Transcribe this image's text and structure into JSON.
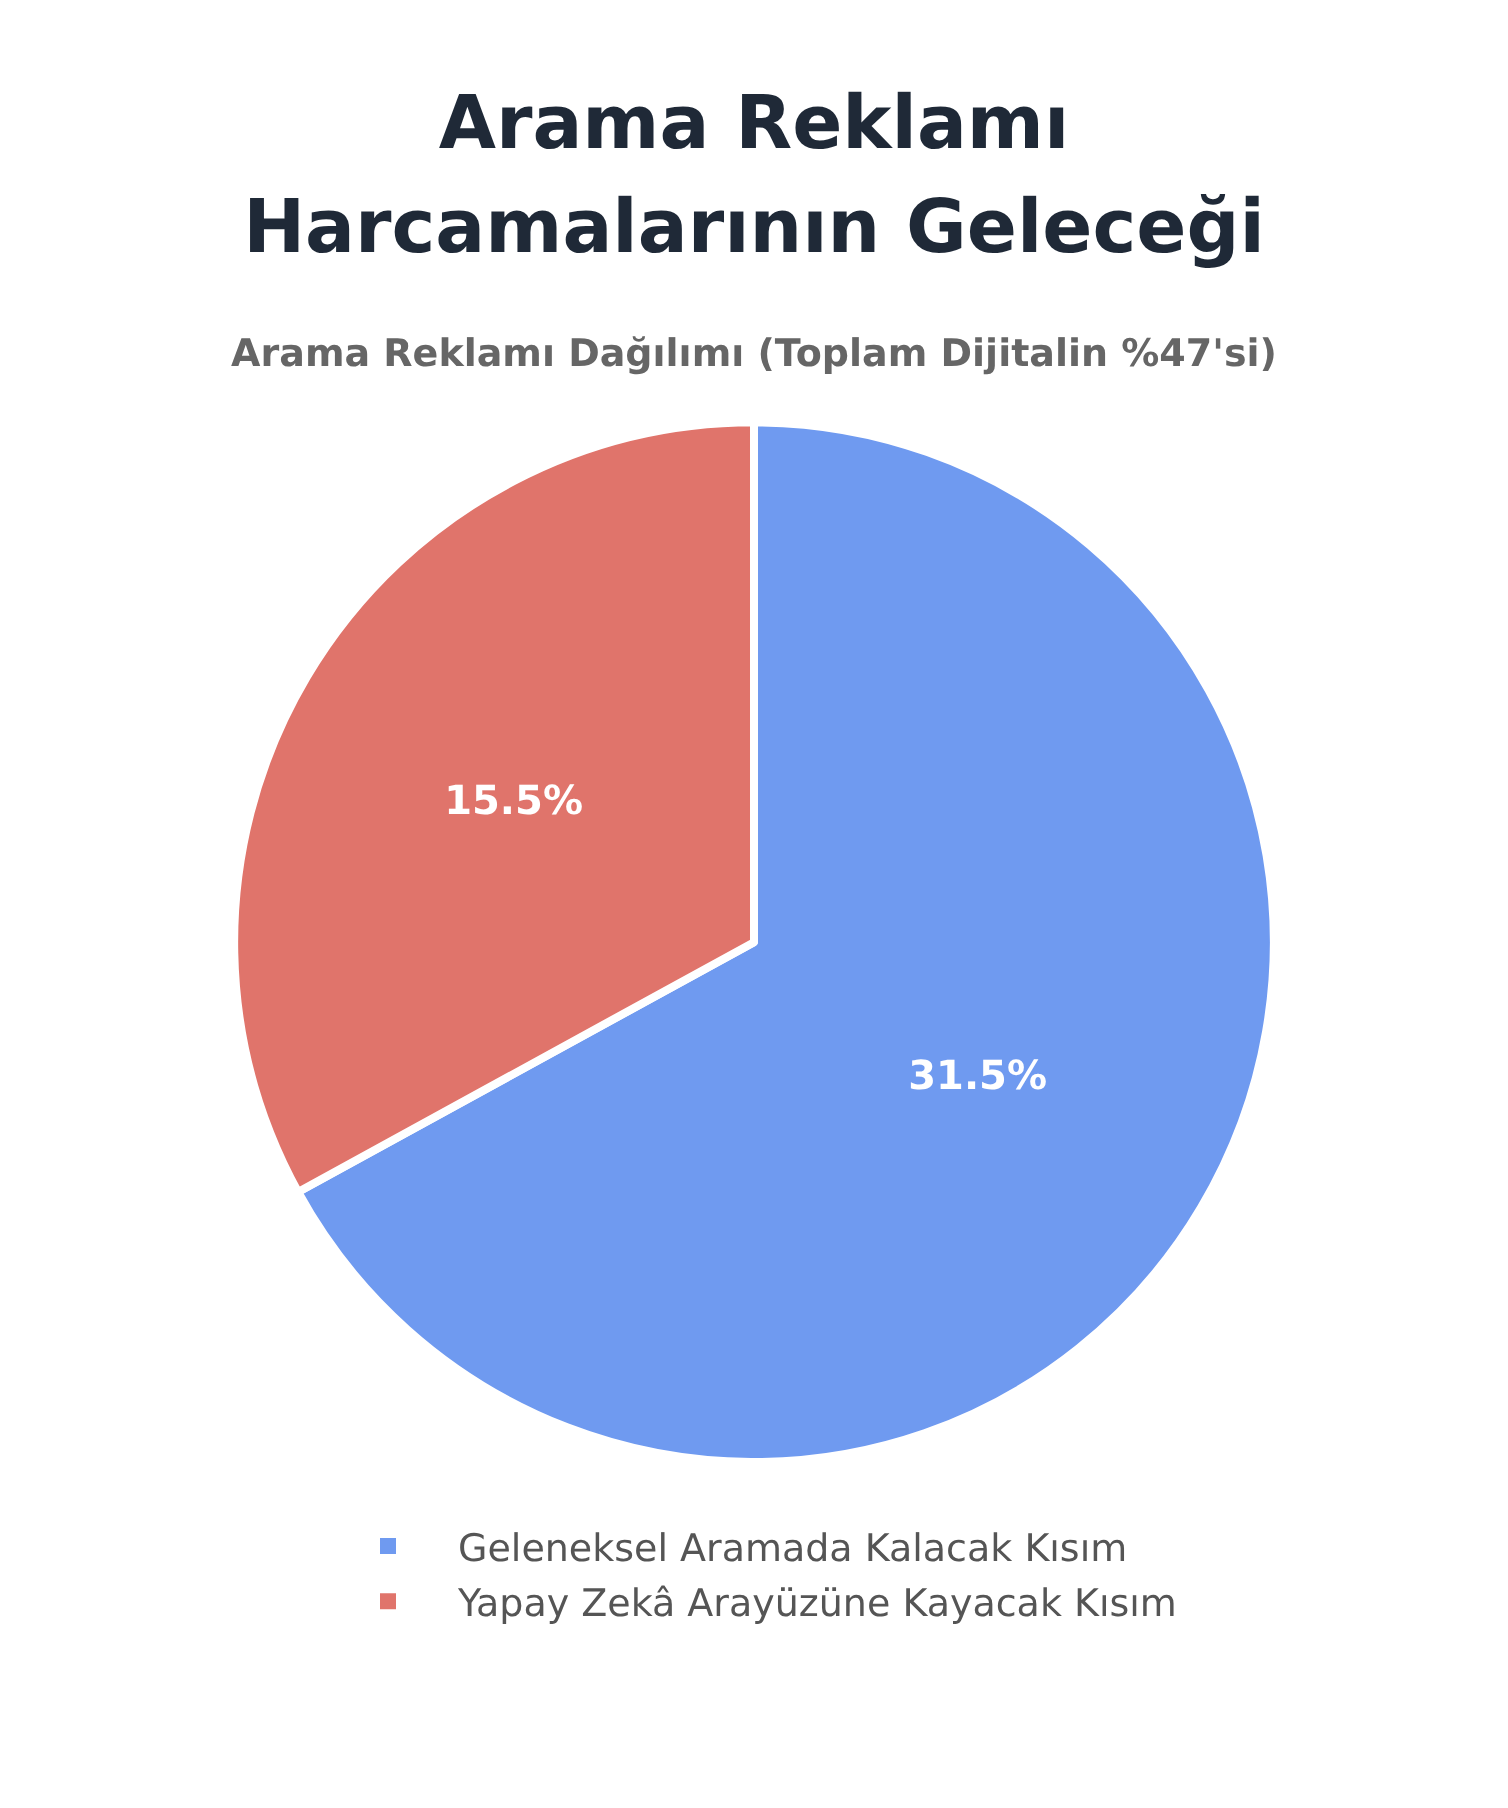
{
  "chart_data": {
    "type": "pie",
    "title": "Arama Reklamı Harcamalarının Geleceği",
    "subtitle": "Arama Reklamı Dağılımı (Toplam Dijitalin %47'si)",
    "categories": [
      "Geleneksel Aramada Kalacak Kısım",
      "Yapay Zekâ Arayüzüne Kayacak Kısım"
    ],
    "values": [
      31.5,
      15.5
    ],
    "colors": [
      "#6f9af0",
      "#e0746b"
    ],
    "value_labels": [
      "31.5%",
      "15.5%"
    ],
    "legend": "bottom"
  }
}
